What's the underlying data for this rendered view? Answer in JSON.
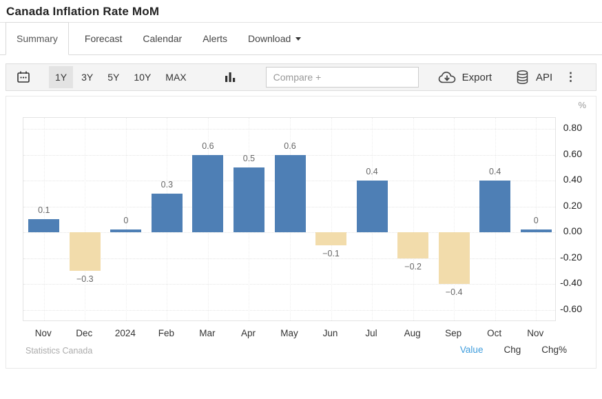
{
  "header": {
    "title": "Canada Inflation Rate MoM"
  },
  "tabs": [
    {
      "label": "Summary",
      "active": true
    },
    {
      "label": "Forecast",
      "active": false
    },
    {
      "label": "Calendar",
      "active": false
    },
    {
      "label": "Alerts",
      "active": false
    },
    {
      "label": "Download",
      "active": false,
      "has_caret": true
    }
  ],
  "toolbar": {
    "ranges": [
      "1Y",
      "3Y",
      "5Y",
      "10Y",
      "MAX"
    ],
    "selected_range": "1Y",
    "compare_placeholder": "Compare +",
    "export_label": "Export",
    "api_label": "API",
    "kebab": "⋮"
  },
  "chart_data": {
    "type": "bar",
    "title": "Canada Inflation Rate MoM",
    "unit": "%",
    "categories": [
      "Nov",
      "Dec",
      "2024",
      "Feb",
      "Mar",
      "Apr",
      "May",
      "Jun",
      "Jul",
      "Aug",
      "Sep",
      "Oct",
      "Nov"
    ],
    "values": [
      0.1,
      -0.3,
      0,
      0.3,
      0.6,
      0.5,
      0.6,
      -0.1,
      0.4,
      -0.2,
      -0.4,
      0.4,
      0
    ],
    "labels": [
      "0.1",
      "−0.3",
      "0",
      "0.3",
      "0.6",
      "0.5",
      "0.6",
      "−0.1",
      "0.4",
      "−0.2",
      "−0.4",
      "0.4",
      "0"
    ],
    "y_ticks": [
      0.8,
      0.6,
      0.4,
      0.2,
      0,
      -0.2,
      -0.4,
      -0.6
    ],
    "y_tick_labels": [
      "0.80",
      "0.60",
      "0.40",
      "0.20",
      "0.00",
      "-0.20",
      "-0.40",
      "-0.60"
    ],
    "ylim": [
      -0.69,
      0.88
    ],
    "grid": true,
    "legend": "none",
    "positive_color": "#4e7fb5",
    "negative_color": "#f2dcab"
  },
  "footer": {
    "source": "Statistics Canada",
    "links": [
      {
        "label": "Value",
        "active": true
      },
      {
        "label": "Chg",
        "active": false
      },
      {
        "label": "Chg%",
        "active": false
      }
    ]
  }
}
